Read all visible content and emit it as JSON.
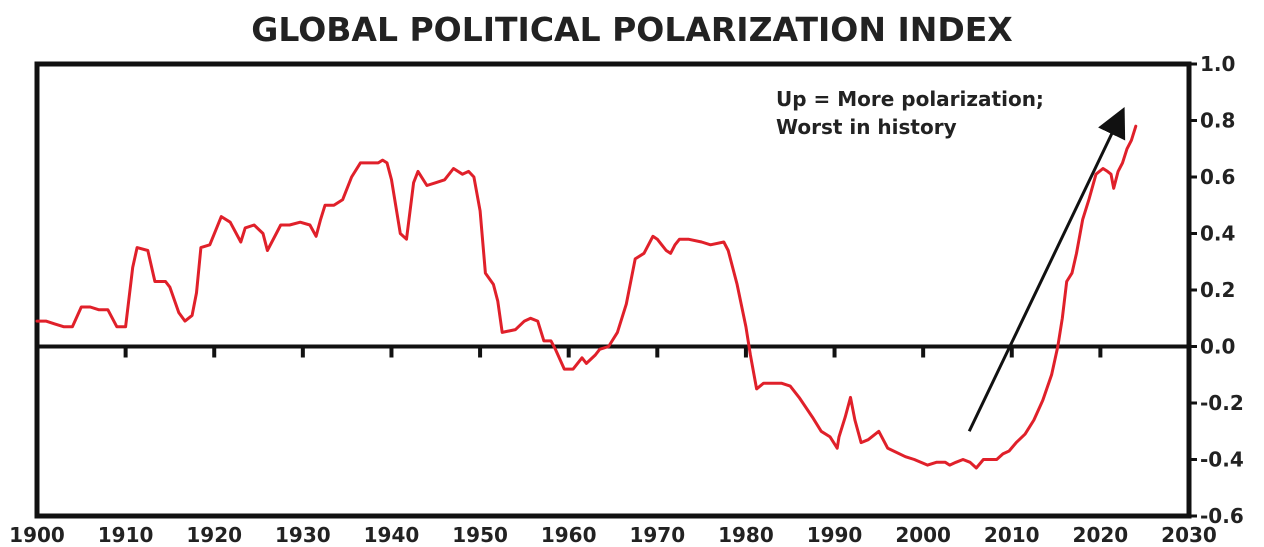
{
  "chart_data": {
    "type": "line",
    "title": "GLOBAL POLITICAL POLARIZATION INDEX",
    "xlim": [
      1900,
      2030
    ],
    "ylim": [
      -0.6,
      1.0
    ],
    "x_ticks": [
      1900,
      1910,
      1920,
      1930,
      1940,
      1950,
      1960,
      1970,
      1980,
      1990,
      2000,
      2010,
      2020,
      2030
    ],
    "y_ticks": [
      1.0,
      0.8,
      0.6,
      0.4,
      0.2,
      0.0,
      -0.2,
      -0.4,
      -0.6
    ],
    "y_axis_position": "right",
    "grid": false,
    "colors": {
      "line": "#e0202a",
      "axes": "#111111",
      "text": "#222222",
      "arrow": "#111111"
    },
    "series": [
      {
        "points": [
          [
            1900.0,
            0.09
          ],
          [
            1901.0,
            0.09
          ],
          [
            1902.0,
            0.08
          ],
          [
            1903.0,
            0.07
          ],
          [
            1904.0,
            0.07
          ],
          [
            1905.0,
            0.14
          ],
          [
            1906.0,
            0.14
          ],
          [
            1907.0,
            0.13
          ],
          [
            1908.0,
            0.13
          ],
          [
            1909.0,
            0.07
          ],
          [
            1910.0,
            0.07
          ],
          [
            1910.8,
            0.28
          ],
          [
            1911.3,
            0.35
          ],
          [
            1912.5,
            0.34
          ],
          [
            1913.3,
            0.23
          ],
          [
            1914.5,
            0.23
          ],
          [
            1915.0,
            0.21
          ],
          [
            1916.0,
            0.12
          ],
          [
            1916.7,
            0.09
          ],
          [
            1917.5,
            0.11
          ],
          [
            1918.0,
            0.19
          ],
          [
            1918.5,
            0.35
          ],
          [
            1919.5,
            0.36
          ],
          [
            1920.8,
            0.46
          ],
          [
            1921.8,
            0.44
          ],
          [
            1923.0,
            0.37
          ],
          [
            1923.5,
            0.42
          ],
          [
            1924.5,
            0.43
          ],
          [
            1925.5,
            0.4
          ],
          [
            1926.0,
            0.34
          ],
          [
            1927.0,
            0.4
          ],
          [
            1927.5,
            0.43
          ],
          [
            1928.5,
            0.43
          ],
          [
            1929.7,
            0.44
          ],
          [
            1930.8,
            0.43
          ],
          [
            1931.5,
            0.39
          ],
          [
            1932.0,
            0.45
          ],
          [
            1932.5,
            0.5
          ],
          [
            1933.5,
            0.5
          ],
          [
            1934.5,
            0.52
          ],
          [
            1935.5,
            0.6
          ],
          [
            1936.5,
            0.65
          ],
          [
            1937.5,
            0.65
          ],
          [
            1938.5,
            0.65
          ],
          [
            1939.0,
            0.66
          ],
          [
            1939.5,
            0.65
          ],
          [
            1940.0,
            0.59
          ],
          [
            1941.0,
            0.4
          ],
          [
            1941.7,
            0.38
          ],
          [
            1942.5,
            0.58
          ],
          [
            1943.0,
            0.62
          ],
          [
            1944.0,
            0.57
          ],
          [
            1945.0,
            0.58
          ],
          [
            1946.0,
            0.59
          ],
          [
            1947.0,
            0.63
          ],
          [
            1948.0,
            0.61
          ],
          [
            1948.7,
            0.62
          ],
          [
            1949.3,
            0.6
          ],
          [
            1950.0,
            0.48
          ],
          [
            1950.6,
            0.26
          ],
          [
            1951.5,
            0.22
          ],
          [
            1952.0,
            0.16
          ],
          [
            1952.5,
            0.05
          ],
          [
            1954.0,
            0.06
          ],
          [
            1955.0,
            0.09
          ],
          [
            1955.7,
            0.1
          ],
          [
            1956.5,
            0.09
          ],
          [
            1957.2,
            0.02
          ],
          [
            1958.0,
            0.02
          ],
          [
            1958.5,
            -0.01
          ],
          [
            1959.5,
            -0.08
          ],
          [
            1960.5,
            -0.08
          ],
          [
            1961.5,
            -0.04
          ],
          [
            1962.0,
            -0.06
          ],
          [
            1963.0,
            -0.03
          ],
          [
            1963.5,
            -0.01
          ],
          [
            1964.5,
            0.0
          ],
          [
            1965.5,
            0.05
          ],
          [
            1966.5,
            0.15
          ],
          [
            1967.5,
            0.31
          ],
          [
            1968.5,
            0.33
          ],
          [
            1969.5,
            0.39
          ],
          [
            1970.0,
            0.38
          ],
          [
            1970.5,
            0.36
          ],
          [
            1971.0,
            0.34
          ],
          [
            1971.5,
            0.33
          ],
          [
            1972.0,
            0.36
          ],
          [
            1972.5,
            0.38
          ],
          [
            1973.5,
            0.38
          ],
          [
            1975.0,
            0.37
          ],
          [
            1976.0,
            0.36
          ],
          [
            1977.5,
            0.37
          ],
          [
            1978.0,
            0.34
          ],
          [
            1979.0,
            0.22
          ],
          [
            1980.0,
            0.07
          ],
          [
            1980.5,
            -0.03
          ],
          [
            1981.2,
            -0.15
          ],
          [
            1982.0,
            -0.13
          ],
          [
            1984.0,
            -0.13
          ],
          [
            1985.0,
            -0.14
          ],
          [
            1986.0,
            -0.18
          ],
          [
            1987.5,
            -0.25
          ],
          [
            1988.5,
            -0.3
          ],
          [
            1989.5,
            -0.32
          ],
          [
            1990.3,
            -0.36
          ],
          [
            1990.5,
            -0.32
          ],
          [
            1991.2,
            -0.25
          ],
          [
            1991.8,
            -0.18
          ],
          [
            1992.3,
            -0.26
          ],
          [
            1993.0,
            -0.34
          ],
          [
            1993.8,
            -0.33
          ],
          [
            1995.0,
            -0.3
          ],
          [
            1996.0,
            -0.36
          ],
          [
            1998.0,
            -0.39
          ],
          [
            1999.0,
            -0.4
          ],
          [
            2000.5,
            -0.42
          ],
          [
            2001.5,
            -0.41
          ],
          [
            2002.5,
            -0.41
          ],
          [
            2003.0,
            -0.42
          ],
          [
            2003.7,
            -0.41
          ],
          [
            2004.5,
            -0.4
          ],
          [
            2005.3,
            -0.41
          ],
          [
            2006.0,
            -0.43
          ],
          [
            2006.8,
            -0.4
          ],
          [
            2007.5,
            -0.4
          ],
          [
            2008.3,
            -0.4
          ],
          [
            2009.0,
            -0.38
          ],
          [
            2009.7,
            -0.37
          ],
          [
            2010.5,
            -0.34
          ],
          [
            2011.5,
            -0.31
          ],
          [
            2012.5,
            -0.26
          ],
          [
            2013.5,
            -0.19
          ],
          [
            2014.5,
            -0.1
          ],
          [
            2015.2,
            0.0
          ],
          [
            2015.7,
            0.1
          ],
          [
            2016.2,
            0.23
          ],
          [
            2016.8,
            0.26
          ],
          [
            2017.3,
            0.33
          ],
          [
            2018.0,
            0.45
          ],
          [
            2018.7,
            0.52
          ],
          [
            2019.5,
            0.61
          ],
          [
            2020.3,
            0.63
          ],
          [
            2020.8,
            0.62
          ],
          [
            2021.2,
            0.61
          ],
          [
            2021.5,
            0.56
          ],
          [
            2022.0,
            0.62
          ],
          [
            2022.5,
            0.65
          ],
          [
            2023.0,
            0.7
          ],
          [
            2023.5,
            0.73
          ],
          [
            2024.0,
            0.78
          ]
        ]
      }
    ],
    "annotations": [
      {
        "lines": [
          "Up = More polarization;",
          "Worst in history"
        ],
        "arrow_from": [
          2005.2,
          -0.3
        ],
        "arrow_to": [
          2022.0,
          0.8
        ]
      }
    ]
  }
}
